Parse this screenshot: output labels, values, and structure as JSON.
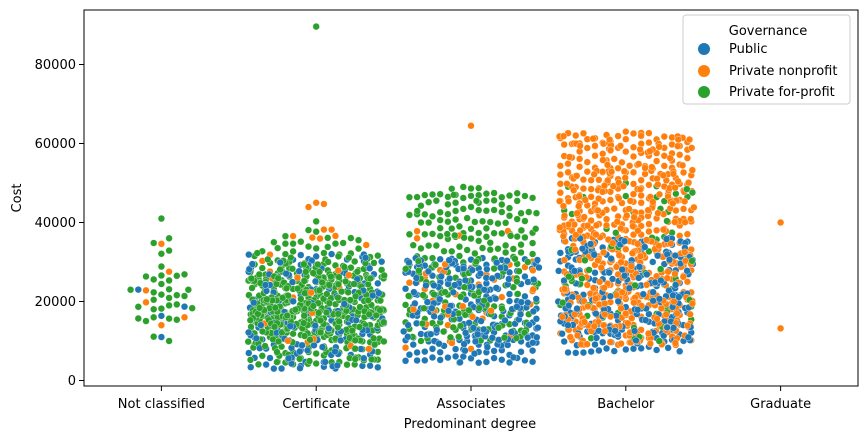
{
  "chart_data": {
    "type": "scatter",
    "subtype": "swarm",
    "title": "",
    "xlabel": "Predominant degree",
    "ylabel": "Cost",
    "ylim": [
      0,
      92000
    ],
    "yticks": [
      0,
      20000,
      40000,
      60000,
      80000
    ],
    "ytick_labels": [
      "0",
      "20000",
      "40000",
      "60000",
      "80000"
    ],
    "grid": false,
    "categories": [
      "Not classified",
      "Certificate",
      "Associates",
      "Bachelor",
      "Graduate"
    ],
    "legend": {
      "title": "Governance",
      "placement": "top-right",
      "entries": [
        "Public",
        "Private nonprofit",
        "Private for-profit"
      ]
    },
    "series": [
      {
        "name": "Public",
        "color": "#1f77b4",
        "by_category": {
          "Not classified": {
            "count": 4,
            "min": 11000,
            "max": 23000
          },
          "Certificate": {
            "count": 180,
            "min": 3000,
            "max": 32000
          },
          "Associates": {
            "count": 280,
            "min": 4500,
            "max": 31000
          },
          "Bachelor": {
            "count": 260,
            "min": 7000,
            "max": 36000
          },
          "Graduate": {
            "count": 0
          }
        }
      },
      {
        "name": "Private nonprofit",
        "color": "#ff7f0e",
        "by_category": {
          "Not classified": {
            "count": 6,
            "min": 14000,
            "max": 34600
          },
          "Certificate": {
            "count": 30,
            "min": 8000,
            "max": 45000
          },
          "Associates": {
            "count": 45,
            "min": 8000,
            "max": 64500
          },
          "Bachelor": {
            "count": 640,
            "min": 9000,
            "max": 63000
          },
          "Graduate": {
            "count": 2,
            "values": [
              13200,
              40000
            ]
          }
        }
      },
      {
        "name": "Private for-profit",
        "color": "#2ca02c",
        "by_category": {
          "Not classified": {
            "count": 35,
            "min": 10000,
            "max": 41000
          },
          "Certificate": {
            "count": 560,
            "min": 4000,
            "max": 89600
          },
          "Associates": {
            "count": 250,
            "min": 10000,
            "max": 49000
          },
          "Bachelor": {
            "count": 70,
            "min": 10000,
            "max": 50000
          },
          "Graduate": {
            "count": 0
          }
        }
      }
    ]
  }
}
